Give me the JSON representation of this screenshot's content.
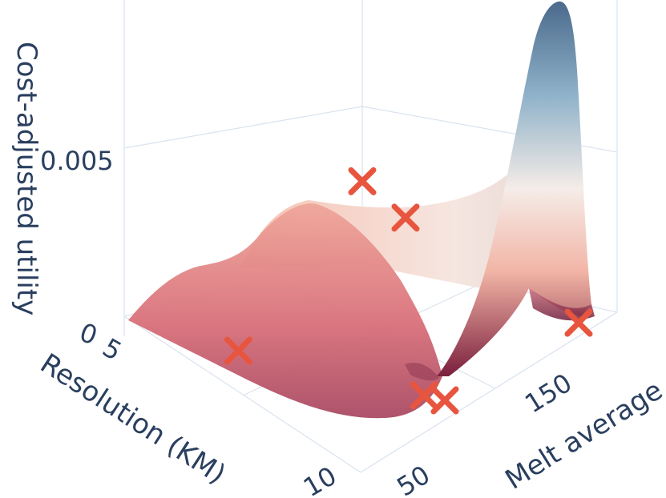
{
  "chart_data": {
    "type": "surface3d",
    "axes": {
      "x": {
        "title": "Resolution (KM)",
        "tick_labels": [
          "5",
          "10"
        ]
      },
      "y": {
        "title": "Melt average",
        "tick_labels": [
          "50",
          "150"
        ]
      },
      "z": {
        "title": "Cost-adjusted utility",
        "tick_labels": [
          "0",
          "0.005"
        ]
      }
    },
    "colorscale": [
      "#7a1f3d",
      "#d2626e",
      "#f2b5a6",
      "#f5ece8",
      "#8fb2c9",
      "#4b6a8c"
    ],
    "marker_color": "#e8553e",
    "markers": [
      {
        "x": 4.2,
        "y": 240,
        "z": 0.0
      },
      {
        "x": 4.2,
        "y": 60,
        "z": 0.0018
      },
      {
        "x": 4.2,
        "y": 15,
        "z": 0.0026
      },
      {
        "x": 10.5,
        "y": 245,
        "z": 0.0
      },
      {
        "x": 10.5,
        "y": 230,
        "z": 0.0
      },
      {
        "x": 10.5,
        "y": 95,
        "z": 0.0
      }
    ]
  }
}
